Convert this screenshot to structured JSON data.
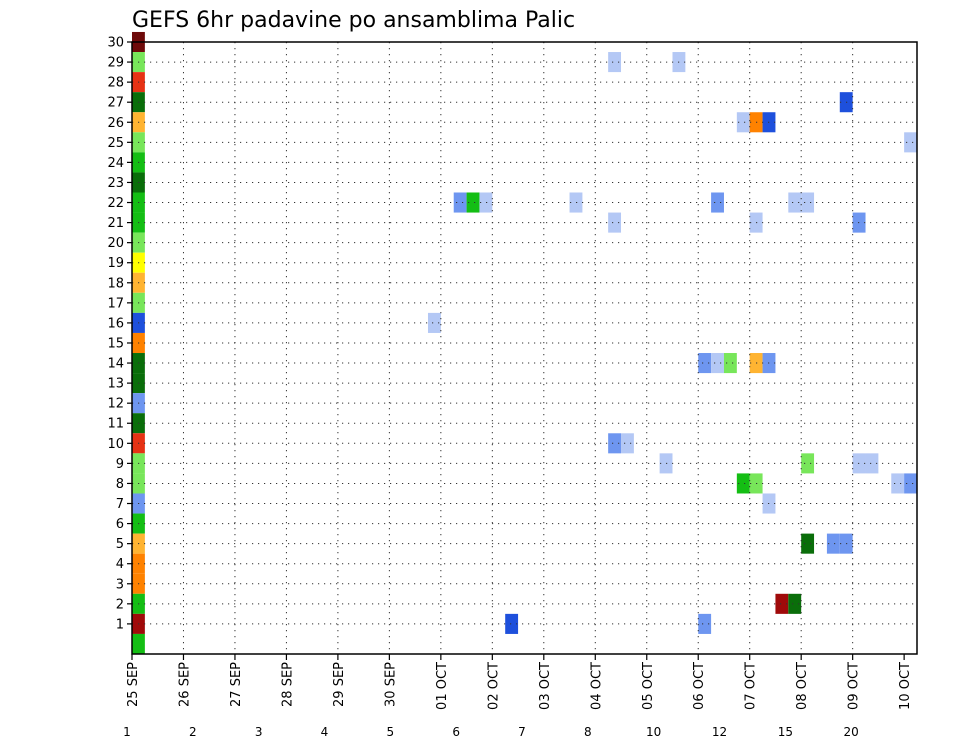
{
  "chart_data": {
    "type": "heatmap",
    "title": "GEFS 6hr padavine po ansamblima Palic",
    "ylim": [
      0,
      30
    ],
    "y_ticks": [
      "1",
      "2",
      "3",
      "4",
      "5",
      "6",
      "7",
      "8",
      "9",
      "10",
      "11",
      "12",
      "13",
      "14",
      "15",
      "16",
      "17",
      "18",
      "19",
      "20",
      "21",
      "22",
      "23",
      "24",
      "25",
      "26",
      "27",
      "28",
      "29",
      "30"
    ],
    "x_ticks": [
      "25 SEP",
      "26 SEP",
      "27 SEP",
      "28 SEP",
      "29 SEP",
      "30 SEP",
      "01 OCT",
      "02 OCT",
      "03 OCT",
      "04 OCT",
      "05 OCT",
      "06 OCT",
      "07 OCT",
      "08 OCT",
      "09 OCT",
      "10 OCT"
    ],
    "x_step_hours": 6,
    "grid": true,
    "colorbar": {
      "boundaries": [
        "1",
        "2",
        "3",
        "4",
        "5",
        "6",
        "7",
        "8",
        "10",
        "12",
        "15",
        "20"
      ],
      "colors": [
        "#b4c8f5",
        "#6e96f0",
        "#1e50dc",
        "#78e65a",
        "#14be14",
        "#0a6e0a",
        "#ffff00",
        "#ffb432",
        "#ff8200",
        "#e63214",
        "#a00a0a",
        "#6e0a0a"
      ]
    },
    "cells": [
      {
        "member": 30,
        "step": 0,
        "level": 11
      },
      {
        "member": 29,
        "step": 0,
        "level": 3
      },
      {
        "member": 28,
        "step": 0,
        "level": 9
      },
      {
        "member": 27,
        "step": 0,
        "level": 5
      },
      {
        "member": 26,
        "step": 0,
        "level": 7
      },
      {
        "member": 25,
        "step": 0,
        "level": 3
      },
      {
        "member": 24,
        "step": 0,
        "level": 4
      },
      {
        "member": 23,
        "step": 0,
        "level": 5
      },
      {
        "member": 22,
        "step": 0,
        "level": 4
      },
      {
        "member": 21,
        "step": 0,
        "level": 4
      },
      {
        "member": 20,
        "step": 0,
        "level": 3
      },
      {
        "member": 19,
        "step": 0,
        "level": 6
      },
      {
        "member": 18,
        "step": 0,
        "level": 7
      },
      {
        "member": 17,
        "step": 0,
        "level": 3
      },
      {
        "member": 16,
        "step": 0,
        "level": 2
      },
      {
        "member": 15,
        "step": 0,
        "level": 8
      },
      {
        "member": 14,
        "step": 0,
        "level": 5
      },
      {
        "member": 13,
        "step": 0,
        "level": 5
      },
      {
        "member": 12,
        "step": 0,
        "level": 1
      },
      {
        "member": 11,
        "step": 0,
        "level": 5
      },
      {
        "member": 10,
        "step": 0,
        "level": 9
      },
      {
        "member": 9,
        "step": 0,
        "level": 3
      },
      {
        "member": 8,
        "step": 0,
        "level": 3
      },
      {
        "member": 7,
        "step": 0,
        "level": 1
      },
      {
        "member": 6,
        "step": 0,
        "level": 4
      },
      {
        "member": 5,
        "step": 0,
        "level": 7
      },
      {
        "member": 4,
        "step": 0,
        "level": 8
      },
      {
        "member": 3,
        "step": 0,
        "level": 8
      },
      {
        "member": 2,
        "step": 0,
        "level": 4
      },
      {
        "member": 1,
        "step": 0,
        "level": 10
      },
      {
        "member": 0,
        "step": 0,
        "level": 4
      },
      {
        "member": 29,
        "step": 37,
        "level": 0
      },
      {
        "member": 29,
        "step": 42,
        "level": 0
      },
      {
        "member": 27,
        "step": 55,
        "level": 2
      },
      {
        "member": 26,
        "step": 47,
        "level": 0
      },
      {
        "member": 26,
        "step": 48,
        "level": 8
      },
      {
        "member": 26,
        "step": 49,
        "level": 2
      },
      {
        "member": 25,
        "step": 60,
        "level": 0
      },
      {
        "member": 22,
        "step": 25,
        "level": 1
      },
      {
        "member": 22,
        "step": 26,
        "level": 4
      },
      {
        "member": 22,
        "step": 27,
        "level": 0
      },
      {
        "member": 22,
        "step": 34,
        "level": 0
      },
      {
        "member": 22,
        "step": 45,
        "level": 1
      },
      {
        "member": 22,
        "step": 51,
        "level": 0
      },
      {
        "member": 22,
        "step": 52,
        "level": 0
      },
      {
        "member": 21,
        "step": 37,
        "level": 0
      },
      {
        "member": 21,
        "step": 48,
        "level": 0
      },
      {
        "member": 21,
        "step": 56,
        "level": 1
      },
      {
        "member": 16,
        "step": 23,
        "level": 0
      },
      {
        "member": 14,
        "step": 44,
        "level": 1
      },
      {
        "member": 14,
        "step": 45,
        "level": 0
      },
      {
        "member": 14,
        "step": 46,
        "level": 3
      },
      {
        "member": 14,
        "step": 48,
        "level": 7
      },
      {
        "member": 14,
        "step": 49,
        "level": 1
      },
      {
        "member": 10,
        "step": 37,
        "level": 1
      },
      {
        "member": 10,
        "step": 38,
        "level": 0
      },
      {
        "member": 9,
        "step": 41,
        "level": 0
      },
      {
        "member": 9,
        "step": 52,
        "level": 3
      },
      {
        "member": 9,
        "step": 56,
        "level": 0
      },
      {
        "member": 9,
        "step": 57,
        "level": 0
      },
      {
        "member": 8,
        "step": 47,
        "level": 4
      },
      {
        "member": 8,
        "step": 48,
        "level": 3
      },
      {
        "member": 8,
        "step": 59,
        "level": 0
      },
      {
        "member": 8,
        "step": 60,
        "level": 1
      },
      {
        "member": 7,
        "step": 49,
        "level": 0
      },
      {
        "member": 5,
        "step": 52,
        "level": 5
      },
      {
        "member": 5,
        "step": 54,
        "level": 1
      },
      {
        "member": 5,
        "step": 55,
        "level": 1
      },
      {
        "member": 2,
        "step": 50,
        "level": 10
      },
      {
        "member": 2,
        "step": 51,
        "level": 5
      },
      {
        "member": 1,
        "step": 29,
        "level": 2
      },
      {
        "member": 1,
        "step": 44,
        "level": 1
      }
    ]
  }
}
